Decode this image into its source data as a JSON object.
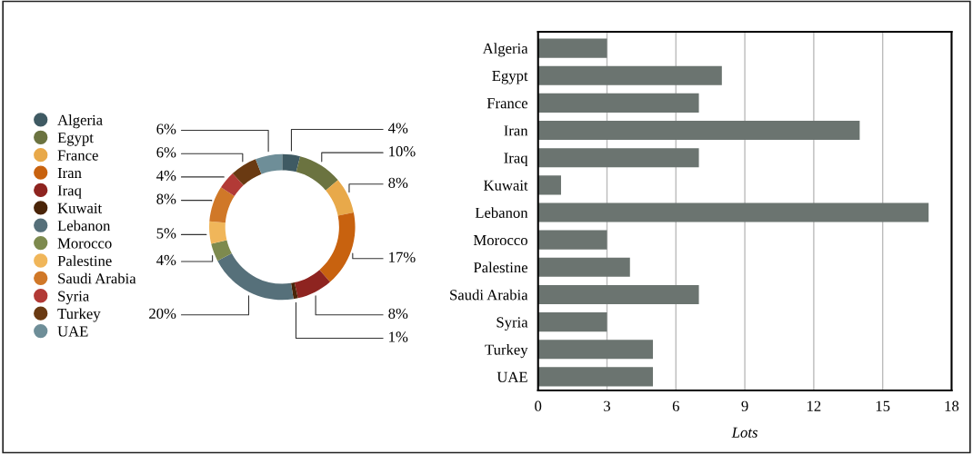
{
  "chart_data": [
    {
      "type": "donut",
      "categories": [
        "Algeria",
        "Egypt",
        "France",
        "Iran",
        "Iraq",
        "Kuwait",
        "Lebanon",
        "Morocco",
        "Palestine",
        "Saudi Arabia",
        "Syria",
        "Turkey",
        "UAE"
      ],
      "values": [
        4,
        10,
        8,
        17,
        8,
        1,
        20,
        4,
        5,
        8,
        4,
        6,
        6
      ],
      "value_labels": [
        "4%",
        "10%",
        "8%",
        "17%",
        "8%",
        "1%",
        "20%",
        "4%",
        "5%",
        "8%",
        "4%",
        "6%",
        "6%"
      ],
      "colors": [
        "#3f5a63",
        "#6b7340",
        "#e8a94a",
        "#c8620f",
        "#8e2420",
        "#4a2408",
        "#56707a",
        "#7d8a4e",
        "#f0b65a",
        "#d07828",
        "#b23a36",
        "#6a3a12",
        "#6e8e98"
      ],
      "legend": "left"
    },
    {
      "type": "bar",
      "orientation": "horizontal",
      "categories": [
        "Algeria",
        "Egypt",
        "France",
        "Iran",
        "Iraq",
        "Kuwait",
        "Lebanon",
        "Morocco",
        "Palestine",
        "Saudi Arabia",
        "Syria",
        "Turkey",
        "UAE"
      ],
      "values": [
        3,
        8,
        7,
        14,
        7,
        1,
        17,
        3,
        4,
        7,
        3,
        5,
        5
      ],
      "color": "#6b7470",
      "xlim": [
        0,
        18
      ],
      "xticks": [
        0,
        3,
        6,
        9,
        12,
        15,
        18
      ],
      "xlabel": "Lots",
      "grid": "x"
    }
  ]
}
